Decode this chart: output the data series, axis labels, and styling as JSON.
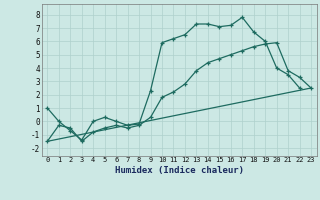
{
  "xlabel": "Humidex (Indice chaleur)",
  "bg_color": "#cce8e4",
  "line_color": "#1e6b60",
  "grid_color": "#afd0cc",
  "xlim": [
    -0.5,
    23.5
  ],
  "ylim": [
    -2.6,
    8.8
  ],
  "yticks": [
    -2,
    -1,
    0,
    1,
    2,
    3,
    4,
    5,
    6,
    7,
    8
  ],
  "xticks": [
    0,
    1,
    2,
    3,
    4,
    5,
    6,
    7,
    8,
    9,
    10,
    11,
    12,
    13,
    14,
    15,
    16,
    17,
    18,
    19,
    20,
    21,
    22,
    23
  ],
  "line1_x": [
    0,
    1,
    2,
    3,
    4,
    5,
    6,
    7,
    8,
    9,
    10,
    11,
    12,
    13,
    14,
    15,
    16,
    17,
    18,
    19,
    20,
    21,
    22
  ],
  "line1_y": [
    1.0,
    0.0,
    -0.7,
    -1.4,
    0.0,
    0.3,
    0.0,
    -0.3,
    -0.2,
    2.3,
    5.9,
    6.2,
    6.5,
    7.3,
    7.3,
    7.1,
    7.2,
    7.8,
    6.7,
    6.0,
    4.0,
    3.5,
    2.5
  ],
  "line2_x": [
    0,
    1,
    2,
    3,
    4,
    5,
    6,
    7,
    8,
    9,
    10,
    11,
    12,
    13,
    14,
    15,
    16,
    17,
    18,
    19,
    20,
    21,
    22,
    23
  ],
  "line2_y": [
    -1.5,
    -0.3,
    -0.5,
    -1.5,
    -0.8,
    -0.5,
    -0.3,
    -0.5,
    -0.3,
    0.3,
    1.8,
    2.2,
    2.8,
    3.8,
    4.4,
    4.7,
    5.0,
    5.3,
    5.6,
    5.8,
    5.9,
    3.8,
    3.3,
    2.5
  ],
  "line3_x": [
    0,
    23
  ],
  "line3_y": [
    -1.5,
    2.5
  ]
}
